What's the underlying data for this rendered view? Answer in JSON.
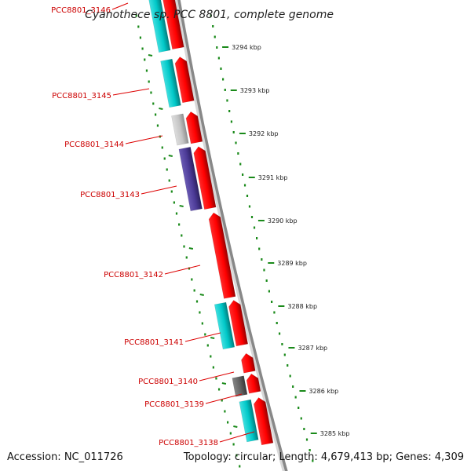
{
  "title": "Cyanothece sp. PCC 8801, complete genome",
  "footer": {
    "accession": "Accession: NC_011726",
    "stats": "Topology: circular; Length: 4,679,413 bp; Genes: 4,309"
  },
  "colors": {
    "forward_cds": "#ff0000",
    "cog_cyan": "#00c8c8",
    "cog_indigo": "#4b3a96",
    "cog_lightgray": "#c8c8c8",
    "cog_darkgray": "#646464",
    "ticks": "#1a8a1a",
    "label_lines": "#dd0000",
    "backbone": "#888888"
  },
  "scale_labels": [
    "3294 kbp",
    "3293 kbp",
    "3292 kbp",
    "3291 kbp",
    "3290 kbp",
    "3289 kbp",
    "3288 kbp",
    "3287 kbp",
    "3286 kbp",
    "3285 kbp"
  ],
  "gene_labels": [
    "PCC8801_3146",
    "PCC8801_3145",
    "PCC8801_3144",
    "PCC8801_3143",
    "PCC8801_3142",
    "PCC8801_3141",
    "PCC8801_3140",
    "PCC8801_3139",
    "PCC8801_3138"
  ]
}
